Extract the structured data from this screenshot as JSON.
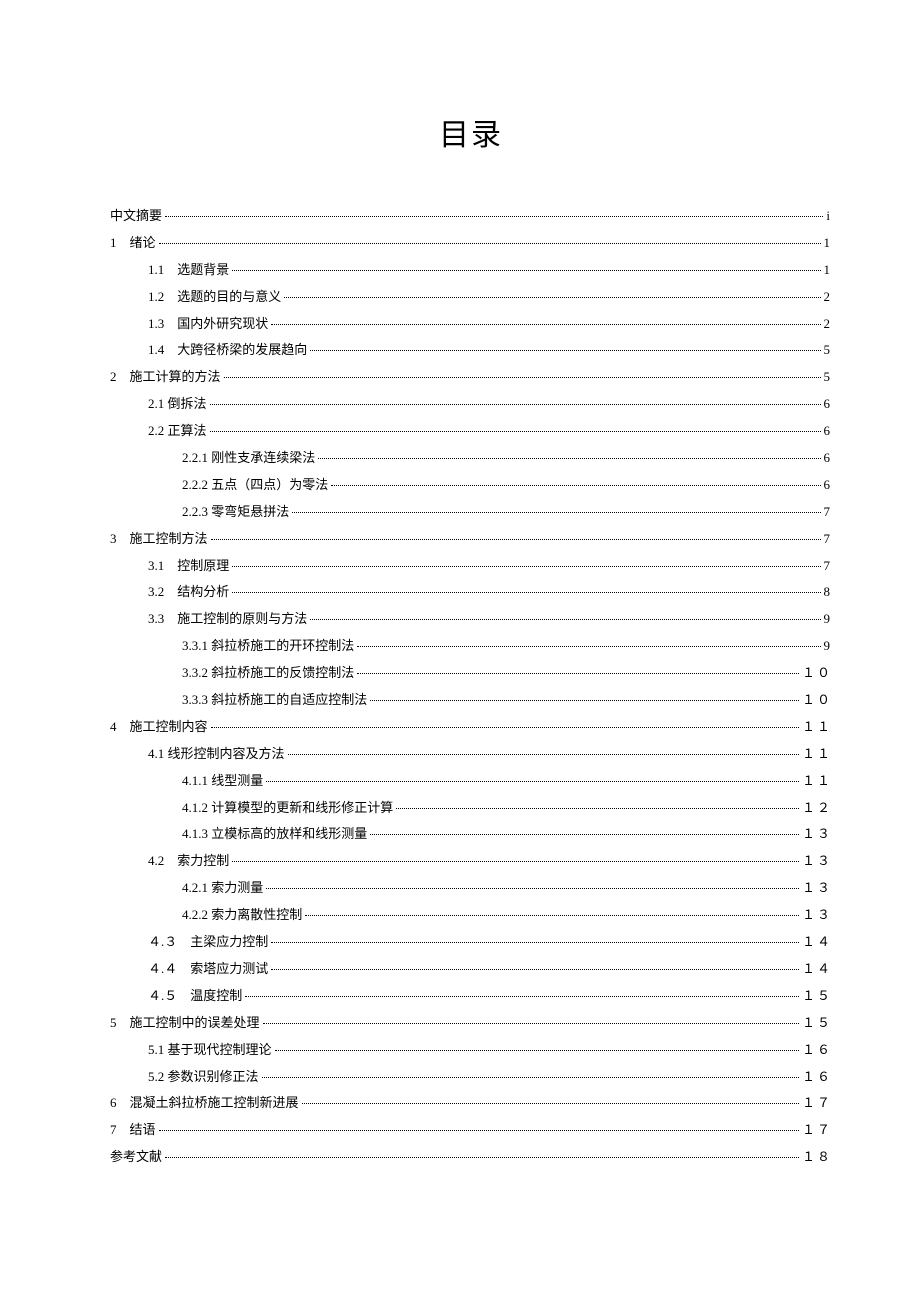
{
  "title": "目录",
  "entries": [
    {
      "indent": 0,
      "label": "中文摘要",
      "page": "i"
    },
    {
      "indent": 0,
      "label": "1　绪论",
      "page": "1"
    },
    {
      "indent": 1,
      "label": "1.1　选题背景",
      "page": "1"
    },
    {
      "indent": 1,
      "label": "1.2　选题的目的与意义",
      "page": "2"
    },
    {
      "indent": 1,
      "label": "1.3　国内外研究现状",
      "page": "2"
    },
    {
      "indent": 1,
      "label": "1.4　大跨径桥梁的发展趋向",
      "page": "5"
    },
    {
      "indent": 0,
      "label": "2　施工计算的方法",
      "page": "5"
    },
    {
      "indent": 1,
      "label": "2.1  倒拆法",
      "page": "6"
    },
    {
      "indent": 1,
      "label": "2.2  正算法",
      "page": "6"
    },
    {
      "indent": 2,
      "label": "2.2.1  刚性支承连续梁法",
      "page": "6"
    },
    {
      "indent": 2,
      "label": "2.2.2  五点（四点）为零法",
      "page": "6"
    },
    {
      "indent": 2,
      "label": "2.2.3  零弯矩悬拼法",
      "page": "7"
    },
    {
      "indent": 0,
      "label": "3　施工控制方法",
      "page": "7"
    },
    {
      "indent": 1,
      "label": "3.1　控制原理",
      "page": "7"
    },
    {
      "indent": 1,
      "label": "3.2　结构分析",
      "page": "8"
    },
    {
      "indent": 1,
      "label": "3.3　施工控制的原则与方法",
      "page": "9"
    },
    {
      "indent": 2,
      "label": "3.3.1  斜拉桥施工的开环控制法",
      "page": "9"
    },
    {
      "indent": 2,
      "label": "3.3.2  斜拉桥施工的反馈控制法",
      "page": "１０"
    },
    {
      "indent": 2,
      "label": "3.3.3  斜拉桥施工的自适应控制法",
      "page": "１０"
    },
    {
      "indent": 0,
      "label": "4　施工控制内容",
      "page": "１１"
    },
    {
      "indent": 1,
      "label": "4.1 线形控制内容及方法",
      "page": "１１"
    },
    {
      "indent": 2,
      "label": "4.1.1  线型测量",
      "page": "１１"
    },
    {
      "indent": 2,
      "label": "4.1.2  计算模型的更新和线形修正计算",
      "page": "１２"
    },
    {
      "indent": 2,
      "label": "4.1.3  立模标高的放样和线形测量",
      "page": "１３"
    },
    {
      "indent": 1,
      "label": "4.2　索力控制",
      "page": "１３"
    },
    {
      "indent": 2,
      "label": "4.2.1 索力测量",
      "page": "１３"
    },
    {
      "indent": 2,
      "label": "4.2.2  索力离散性控制",
      "page": "１３"
    },
    {
      "indent": 1,
      "label": "４.３　主梁应力控制",
      "page": "１４"
    },
    {
      "indent": 1,
      "label": "４.４　索塔应力测试",
      "page": "１４"
    },
    {
      "indent": 1,
      "label": "４.５　温度控制",
      "page": "１５"
    },
    {
      "indent": 0,
      "label": "5　施工控制中的误差处理",
      "page": "１５"
    },
    {
      "indent": 1,
      "label": "5.1  基于现代控制理论",
      "page": "１６"
    },
    {
      "indent": 1,
      "label": "5.2  参数识别修正法",
      "page": "１６"
    },
    {
      "indent": 0,
      "label": "6　混凝土斜拉桥施工控制新进展",
      "page": "１７"
    },
    {
      "indent": 0,
      "label": "7　结语",
      "page": "１７"
    },
    {
      "indent": 0,
      "label": "参考文献",
      "page": "１８"
    }
  ]
}
